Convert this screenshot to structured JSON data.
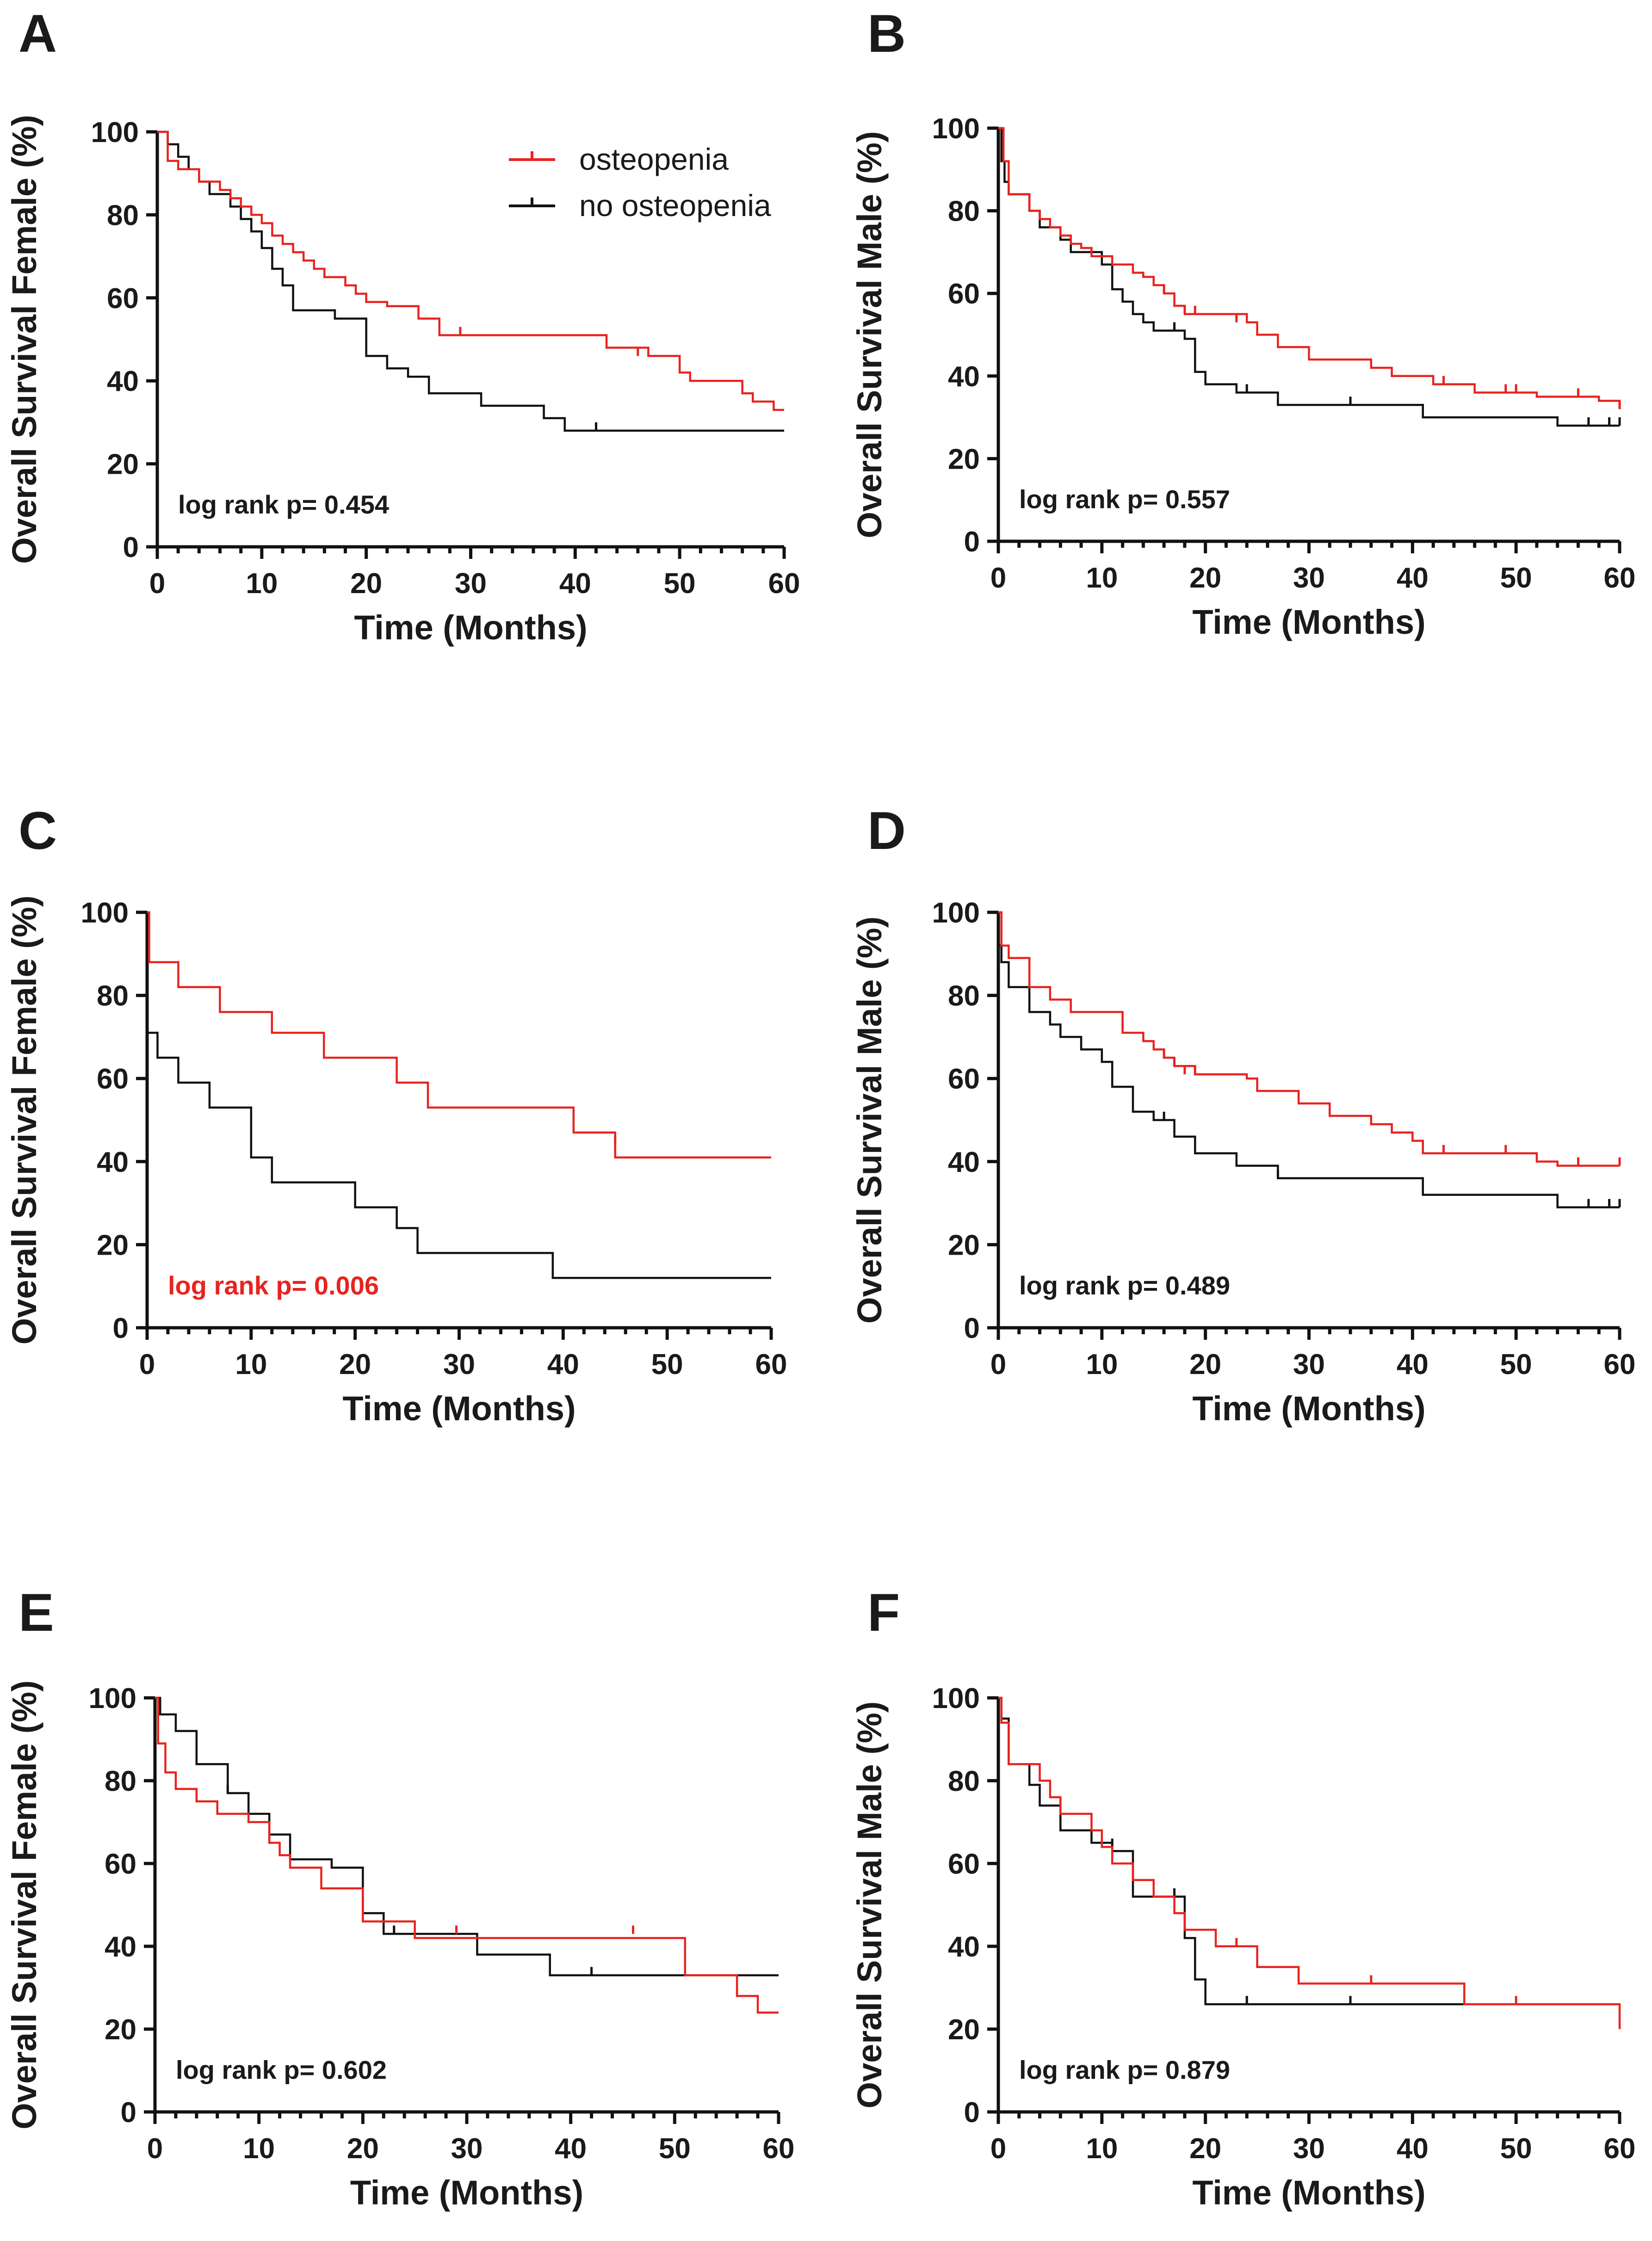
{
  "legend": {
    "items": [
      {
        "label": "osteopenia",
        "color": "#e8231f"
      },
      {
        "label": "no osteopenia",
        "color": "#111111"
      }
    ]
  },
  "colors": {
    "osteopenia": "#e8231f",
    "no_osteopenia": "#111111",
    "significant_p": "#e8231f",
    "text": "#1a1a1a"
  },
  "chart_data": [
    {
      "panel": "A",
      "type": "line",
      "step": true,
      "ylabel": "Overall Survival Female (%)",
      "xlabel": "Time (Months)",
      "xlim": [
        0,
        60
      ],
      "ylim": [
        0,
        100
      ],
      "xticks": [
        0,
        10,
        20,
        30,
        40,
        50,
        60
      ],
      "yticks": [
        0,
        20,
        40,
        60,
        80,
        100
      ],
      "pvalue": "log rank p= 0.454",
      "p_significant": false,
      "series": [
        {
          "name": "osteopenia",
          "x": [
            0,
            1,
            2,
            4,
            6,
            7,
            8,
            9,
            10,
            11,
            12,
            13,
            14,
            15,
            16,
            18,
            19,
            20,
            22,
            25,
            27,
            43,
            47,
            50,
            51,
            56,
            57,
            59,
            60
          ],
          "y": [
            100,
            93,
            91,
            88,
            86,
            84,
            82,
            80,
            78,
            75,
            73,
            71,
            69,
            67,
            65,
            63,
            61,
            59,
            58,
            55,
            51,
            48,
            46,
            42,
            40,
            37,
            35,
            33,
            33
          ],
          "censored_x": [
            29,
            46
          ],
          "censored_y": [
            51,
            46
          ]
        },
        {
          "name": "no osteopenia",
          "x": [
            0,
            1,
            2,
            3,
            4,
            5,
            7,
            8,
            9,
            10,
            11,
            12,
            13,
            17,
            20,
            22,
            24,
            26,
            31,
            37,
            39,
            60
          ],
          "y": [
            100,
            97,
            94,
            91,
            88,
            85,
            82,
            79,
            76,
            72,
            67,
            63,
            57,
            55,
            46,
            43,
            41,
            37,
            34,
            31,
            28,
            28
          ],
          "censored_x": [
            42
          ],
          "censored_y": [
            28
          ]
        }
      ]
    },
    {
      "panel": "B",
      "type": "line",
      "step": true,
      "ylabel": "Overall Survival Male (%)",
      "xlabel": "Time (Months)",
      "xlim": [
        0,
        60
      ],
      "ylim": [
        0,
        100
      ],
      "xticks": [
        0,
        10,
        20,
        30,
        40,
        50,
        60
      ],
      "yticks": [
        0,
        20,
        40,
        60,
        80,
        100
      ],
      "pvalue": "log rank p= 0.557",
      "p_significant": false,
      "series": [
        {
          "name": "osteopenia",
          "x": [
            0,
            0.5,
            1,
            3,
            4,
            5,
            6,
            7,
            8,
            9,
            10,
            11,
            12,
            13,
            14,
            15,
            16,
            17,
            18,
            20,
            24,
            25,
            27,
            30,
            36,
            38,
            42,
            46,
            52,
            58,
            60
          ],
          "y": [
            100,
            92,
            84,
            80,
            78,
            76,
            74,
            72,
            71,
            69,
            69,
            67,
            67,
            65,
            64,
            62,
            60,
            57,
            55,
            55,
            53,
            50,
            47,
            44,
            42,
            40,
            38,
            36,
            35,
            34,
            32
          ],
          "censored_x": [
            16,
            18,
            19,
            23,
            43,
            49,
            50,
            56,
            60
          ],
          "censored_y": [
            60,
            55,
            55,
            53,
            38,
            36,
            36,
            35,
            32
          ]
        },
        {
          "name": "no osteopenia",
          "x": [
            0,
            0.3,
            0.6,
            1,
            3,
            4,
            6,
            7,
            10,
            11,
            12,
            13,
            14,
            15,
            18,
            19,
            20,
            23,
            27,
            41,
            54,
            57,
            60
          ],
          "y": [
            100,
            92,
            87,
            84,
            80,
            76,
            73,
            70,
            67,
            61,
            58,
            55,
            53,
            51,
            49,
            41,
            38,
            36,
            33,
            30,
            28,
            28,
            28
          ],
          "censored_x": [
            17,
            24,
            34,
            57,
            59,
            60
          ],
          "censored_y": [
            51,
            36,
            33,
            28,
            28,
            28
          ]
        }
      ]
    },
    {
      "panel": "C",
      "type": "line",
      "step": true,
      "ylabel": "Overall Survival Female (%)",
      "xlabel": "Time (Months)",
      "xlim": [
        0,
        60
      ],
      "ylim": [
        0,
        100
      ],
      "xticks": [
        0,
        10,
        20,
        30,
        40,
        50,
        60
      ],
      "yticks": [
        0,
        20,
        40,
        60,
        80,
        100
      ],
      "pvalue": "log rank p= 0.006",
      "p_significant": true,
      "series": [
        {
          "name": "osteopenia",
          "x": [
            0,
            0.2,
            3,
            7,
            12,
            17,
            24,
            27,
            41,
            45,
            60
          ],
          "y": [
            100,
            88,
            82,
            76,
            71,
            65,
            59,
            53,
            47,
            41,
            41
          ],
          "censored_x": [
            45
          ],
          "censored_y": [
            44
          ]
        },
        {
          "name": "no osteopenia",
          "x": [
            0,
            1,
            3,
            6,
            10,
            12,
            20,
            24,
            26,
            39,
            60
          ],
          "y": [
            71,
            65,
            59,
            53,
            41,
            35,
            29,
            24,
            18,
            12,
            12
          ],
          "censored_x": [],
          "censored_y": []
        }
      ]
    },
    {
      "panel": "D",
      "type": "line",
      "step": true,
      "ylabel": "Overall Survival Male (%)",
      "xlabel": "Time (Months)",
      "xlim": [
        0,
        60
      ],
      "ylim": [
        0,
        100
      ],
      "xticks": [
        0,
        10,
        20,
        30,
        40,
        50,
        60
      ],
      "yticks": [
        0,
        20,
        40,
        60,
        80,
        100
      ],
      "pvalue": "log rank p= 0.489",
      "p_significant": false,
      "series": [
        {
          "name": "osteopenia",
          "x": [
            0,
            0.3,
            1,
            3,
            5,
            7,
            12,
            14,
            15,
            16,
            17,
            19,
            24,
            25,
            29,
            32,
            36,
            38,
            40,
            41,
            52,
            54,
            60
          ],
          "y": [
            100,
            92,
            89,
            82,
            79,
            76,
            71,
            69,
            67,
            65,
            63,
            61,
            60,
            57,
            54,
            51,
            49,
            47,
            45,
            42,
            40,
            39,
            39
          ],
          "censored_x": [
            16,
            17,
            18,
            19,
            43,
            49,
            56,
            60
          ],
          "censored_y": [
            65,
            63,
            61,
            61,
            42,
            42,
            39,
            39
          ]
        },
        {
          "name": "no osteopenia",
          "x": [
            0,
            0.3,
            1,
            3,
            5,
            6,
            8,
            10,
            11,
            13,
            15,
            17,
            19,
            23,
            27,
            41,
            54,
            60
          ],
          "y": [
            92,
            88,
            82,
            76,
            73,
            70,
            67,
            64,
            58,
            52,
            50,
            46,
            42,
            39,
            36,
            32,
            29,
            29
          ],
          "censored_x": [
            16,
            27,
            57,
            59,
            60
          ],
          "censored_y": [
            50,
            36,
            29,
            29,
            29
          ]
        }
      ]
    },
    {
      "panel": "E",
      "type": "line",
      "step": true,
      "ylabel": "Overall Survival Female (%)",
      "xlabel": "Time (Months)",
      "xlim": [
        0,
        60
      ],
      "ylim": [
        0,
        100
      ],
      "xticks": [
        0,
        10,
        20,
        30,
        40,
        50,
        60
      ],
      "yticks": [
        0,
        20,
        40,
        60,
        80,
        100
      ],
      "pvalue": "log rank p= 0.602",
      "p_significant": false,
      "series": [
        {
          "name": "osteopenia",
          "x": [
            0,
            0.3,
            1,
            2,
            4,
            6,
            9,
            11,
            12,
            13,
            16,
            20,
            25,
            50,
            51,
            56,
            58,
            60
          ],
          "y": [
            100,
            89,
            82,
            78,
            75,
            72,
            70,
            65,
            62,
            59,
            54,
            46,
            42,
            42,
            33,
            28,
            24,
            24
          ],
          "censored_x": [
            29,
            46
          ],
          "censored_y": [
            43,
            43
          ]
        },
        {
          "name": "no osteopenia",
          "x": [
            0,
            0.5,
            2,
            4,
            7,
            9,
            11,
            13,
            17,
            20,
            22,
            31,
            38,
            60
          ],
          "y": [
            100,
            96,
            92,
            84,
            77,
            72,
            67,
            61,
            59,
            48,
            43,
            38,
            33,
            33
          ],
          "censored_x": [
            7,
            23,
            42
          ],
          "censored_y": [
            77,
            43,
            33
          ]
        }
      ]
    },
    {
      "panel": "F",
      "type": "line",
      "step": true,
      "ylabel": "Overall Survival Male (%)",
      "xlabel": "Time (Months)",
      "xlim": [
        0,
        60
      ],
      "ylim": [
        0,
        100
      ],
      "xticks": [
        0,
        10,
        20,
        30,
        40,
        50,
        60
      ],
      "yticks": [
        0,
        20,
        40,
        60,
        80,
        100
      ],
      "pvalue": "log rank p= 0.879",
      "p_significant": false,
      "series": [
        {
          "name": "osteopenia",
          "x": [
            0,
            0.3,
            1,
            4,
            5,
            6,
            9,
            10,
            11,
            13,
            15,
            17,
            18,
            21,
            25,
            29,
            45,
            60
          ],
          "y": [
            100,
            94,
            84,
            80,
            76,
            72,
            68,
            64,
            60,
            56,
            52,
            48,
            44,
            40,
            35,
            31,
            26,
            20
          ],
          "censored_x": [
            23,
            36,
            50
          ],
          "censored_y": [
            40,
            31,
            26
          ]
        },
        {
          "name": "no osteopenia",
          "x": [
            0,
            0.3,
            1,
            3,
            4,
            6,
            9,
            11,
            13,
            17,
            18,
            19,
            20,
            60
          ],
          "y": [
            100,
            95,
            84,
            79,
            74,
            68,
            65,
            63,
            52,
            52,
            42,
            32,
            26,
            26
          ],
          "censored_x": [
            11,
            17,
            24,
            34
          ],
          "censored_y": [
            64,
            52,
            26,
            26
          ]
        }
      ]
    }
  ]
}
